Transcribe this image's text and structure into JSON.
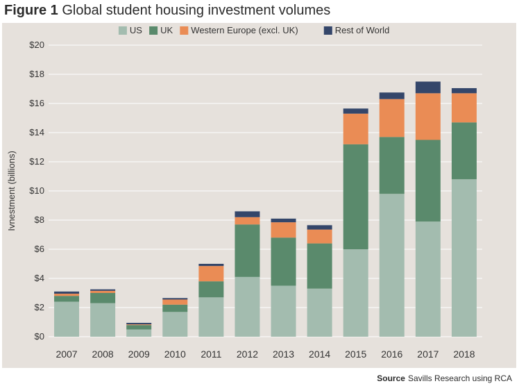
{
  "figure": {
    "label": "Figure 1",
    "title": "Global student housing investment volumes",
    "source_label": "Source",
    "source_text": "Savills Research using RCA"
  },
  "colors": {
    "panel": "#e6e1dc",
    "grid": "#ffffff",
    "US": "#a3bcaf",
    "UK": "#5a8a6c",
    "Western Europe (excl. UK)": "#ea8c55",
    "Rest of World": "#34466a"
  },
  "chart_data": {
    "type": "bar",
    "stacked": true,
    "title": "Global student housing investment volumes",
    "ylabel": "Ivnestment (billions)",
    "xlabel": "",
    "ylim": [
      0,
      20
    ],
    "yticks": [
      0,
      2,
      4,
      6,
      8,
      10,
      12,
      14,
      16,
      18,
      20
    ],
    "ytick_labels": [
      "$0",
      "$2",
      "$4",
      "$6",
      "$8",
      "$10",
      "$12",
      "$14",
      "$16",
      "$18",
      "$20"
    ],
    "grid": true,
    "legend_position": "top",
    "categories": [
      "2007",
      "2008",
      "2009",
      "2010",
      "2011",
      "2012",
      "2013",
      "2014",
      "2015",
      "2016",
      "2017",
      "2018"
    ],
    "series": [
      {
        "name": "US",
        "values": [
          2.4,
          2.3,
          0.5,
          1.7,
          2.7,
          4.1,
          3.5,
          3.3,
          6.0,
          9.8,
          7.9,
          10.8
        ]
      },
      {
        "name": "UK",
        "values": [
          0.4,
          0.7,
          0.3,
          0.5,
          1.1,
          3.6,
          3.3,
          3.1,
          7.2,
          3.9,
          5.6,
          3.9
        ]
      },
      {
        "name": "Western Europe (excl. UK)",
        "values": [
          0.15,
          0.15,
          0.05,
          0.35,
          1.05,
          0.5,
          1.05,
          0.95,
          2.1,
          2.6,
          3.2,
          2.0
        ]
      },
      {
        "name": "Rest of World",
        "values": [
          0.15,
          0.1,
          0.1,
          0.1,
          0.15,
          0.4,
          0.25,
          0.3,
          0.35,
          0.45,
          0.8,
          0.35
        ]
      }
    ]
  }
}
